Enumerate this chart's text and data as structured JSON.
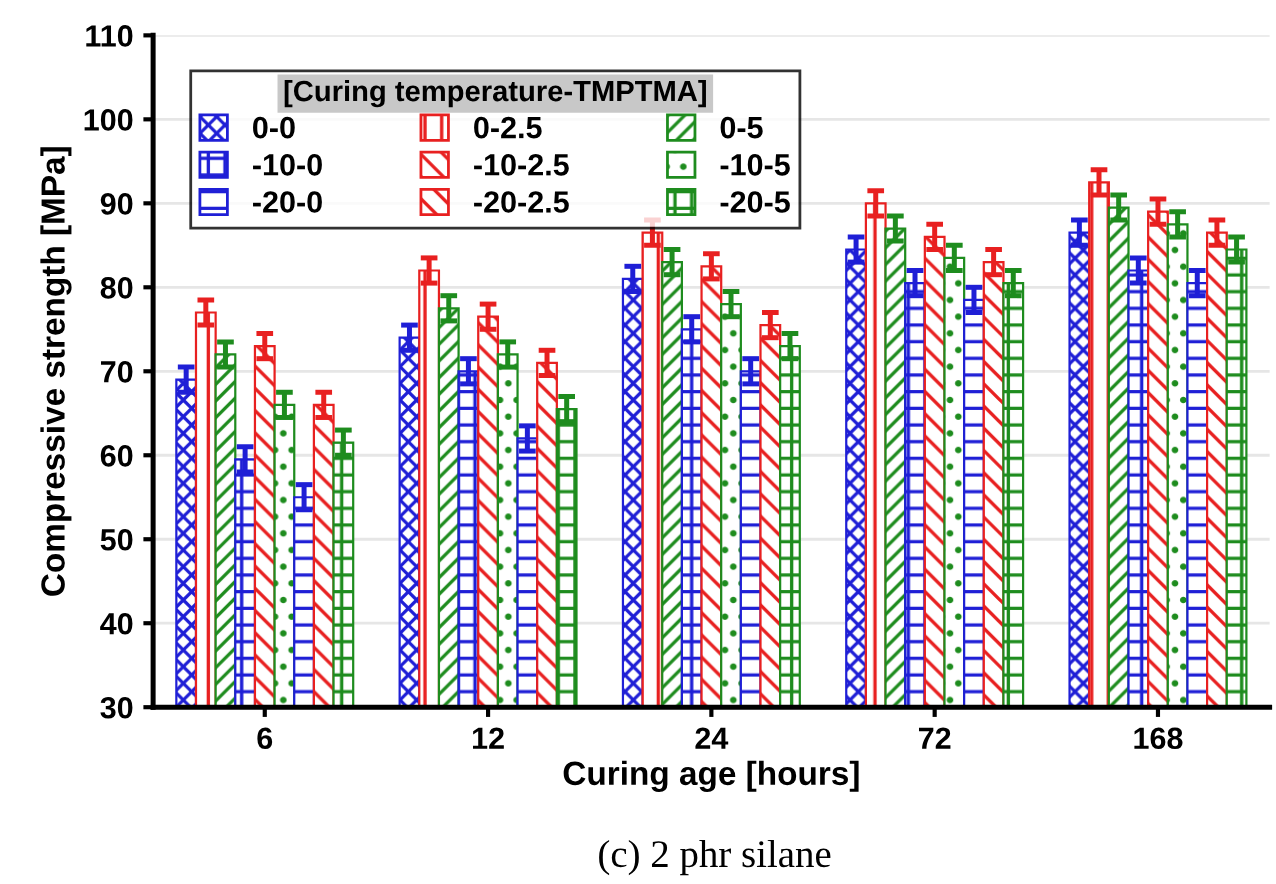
{
  "chart_data": {
    "type": "bar",
    "xlabel": "Curing age [hours]",
    "ylabel": "Compressive strength [MPa]",
    "categories": [
      "6",
      "12",
      "24",
      "72",
      "168"
    ],
    "series": [
      {
        "name": "0-0",
        "color": "#1f1fd6",
        "values": [
          69,
          74,
          81,
          84.5,
          86.5
        ],
        "errors": [
          1.5,
          1.5,
          1.5,
          1.5,
          1.5
        ]
      },
      {
        "name": "0-2.5",
        "color": "#e82020",
        "values": [
          77,
          82,
          86.5,
          90,
          92.5
        ],
        "errors": [
          1.5,
          1.5,
          1.5,
          1.5,
          1.5
        ]
      },
      {
        "name": "0-5",
        "color": "#1e8c1e",
        "values": [
          72,
          77.5,
          83,
          87,
          89.5
        ],
        "errors": [
          1.5,
          1.5,
          1.5,
          1.5,
          1.5
        ]
      },
      {
        "name": "-10-0",
        "color": "#1f1fd6",
        "values": [
          59.5,
          70,
          75,
          80.5,
          82
        ],
        "errors": [
          1.5,
          1.5,
          1.5,
          1.5,
          1.5
        ]
      },
      {
        "name": "-10-2.5",
        "color": "#e82020",
        "values": [
          73,
          76.5,
          82.5,
          86,
          89
        ],
        "errors": [
          1.5,
          1.5,
          1.5,
          1.5,
          1.5
        ]
      },
      {
        "name": "-10-5",
        "color": "#1e8c1e",
        "values": [
          66,
          72,
          78,
          83.5,
          87.5
        ],
        "errors": [
          1.5,
          1.5,
          1.5,
          1.5,
          1.5
        ]
      },
      {
        "name": "-20-0",
        "color": "#1f1fd6",
        "values": [
          55,
          62,
          70,
          78.5,
          80.5
        ],
        "errors": [
          1.5,
          1.5,
          1.5,
          1.5,
          1.5
        ]
      },
      {
        "name": "-20-2.5",
        "color": "#e82020",
        "values": [
          66,
          71,
          75.5,
          83,
          86.5
        ],
        "errors": [
          1.5,
          1.5,
          1.5,
          1.5,
          1.5
        ]
      },
      {
        "name": "-20-5",
        "color": "#1e8c1e",
        "values": [
          61.5,
          65.5,
          73,
          80.5,
          84.5
        ],
        "errors": [
          1.5,
          1.5,
          1.5,
          1.5,
          1.5
        ]
      }
    ],
    "legend_title": "[Curing temperature-TMPTMA]",
    "legend": "top left",
    "ylim": [
      30,
      110
    ],
    "yticks": [
      30,
      40,
      50,
      60,
      70,
      80,
      90,
      100,
      110
    ],
    "grid": "y",
    "annotations": [
      "(c) 2 phr silane"
    ]
  }
}
